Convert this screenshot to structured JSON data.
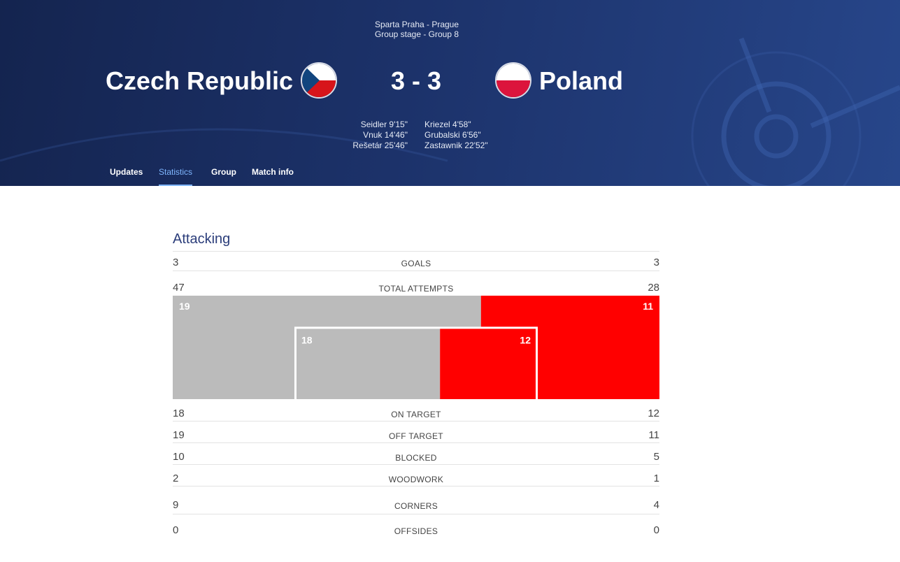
{
  "match": {
    "venue": "Sparta Praha - Prague",
    "stage": "Group stage - Group 8",
    "home_team": "Czech Republic",
    "away_team": "Poland",
    "score": "3 - 3",
    "home_scorers": [
      "Seidler 9'15\"",
      "Vnuk 14'46\"",
      "Rešetár 25'46\""
    ],
    "away_scorers": [
      "Kriezel 4'58\"",
      "Grubalski 6'56\"",
      "Zastawnik 22'52\""
    ]
  },
  "tabs": [
    {
      "label": "Updates",
      "active": false
    },
    {
      "label": "Statistics",
      "active": true
    },
    {
      "label": "Group",
      "active": false
    },
    {
      "label": "Match info",
      "active": false
    }
  ],
  "colors": {
    "home": "#bbbbbb",
    "away": "#ff0000",
    "tab_active": "#7fb6ff",
    "section_title": "#2b3d7a"
  },
  "attacking": {
    "title": "Attacking",
    "goals": {
      "label": "GOALS",
      "home": "3",
      "away": "3"
    },
    "total_attempts": {
      "label": "TOTAL ATTEMPTS",
      "home": "47",
      "away": "28"
    },
    "rows": [
      {
        "label": "ON TARGET",
        "home": "18",
        "away": "12"
      },
      {
        "label": "OFF TARGET",
        "home": "19",
        "away": "11"
      },
      {
        "label": "BLOCKED",
        "home": "10",
        "away": "5"
      },
      {
        "label": "WOODWORK",
        "home": "2",
        "away": "1"
      },
      {
        "label": "CORNERS",
        "home": "9",
        "away": "4"
      },
      {
        "label": "OFFSIDES",
        "home": "0",
        "away": "0"
      }
    ]
  },
  "chart_data": {
    "type": "bar",
    "categories": [
      "Off target",
      "On target"
    ],
    "series": [
      {
        "name": "Czech Republic",
        "values": [
          19,
          18
        ]
      },
      {
        "name": "Poland",
        "values": [
          11,
          12
        ]
      }
    ],
    "data_labels": {
      "off_target": [
        "19",
        "11"
      ],
      "on_target": [
        "18",
        "12"
      ]
    }
  }
}
